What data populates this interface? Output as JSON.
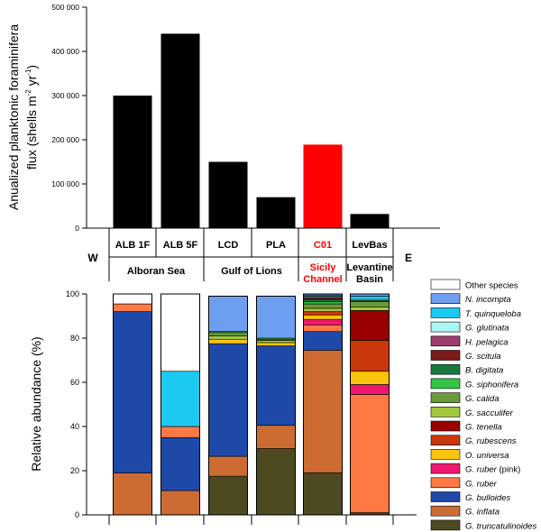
{
  "chart_data": [
    {
      "type": "bar",
      "title": "",
      "ylabel": "Anualized planktonic foraminifera flux (shells m-2 yr-1)",
      "ylabel_line1": "Anualized planktonic foraminifera",
      "ylabel_line2": "flux (shells m",
      "ylabel_sup2": "-2",
      "ylabel_mid": " yr",
      "ylabel_sup1": "-1",
      "ylabel_end": ")",
      "ylim": [
        0,
        500000
      ],
      "yticks": [
        0,
        100000,
        200000,
        300000,
        400000,
        500000
      ],
      "ytick_labels": [
        "0",
        "100 000",
        "200 000",
        "300 000",
        "400 000",
        "500 000"
      ],
      "categories": [
        "ALB 1F",
        "ALB 5F",
        "LCD",
        "PLA",
        "C01",
        "LevBas"
      ],
      "values": [
        300000,
        440000,
        150000,
        70000,
        189000,
        32000
      ],
      "bar_colors": [
        "#000000",
        "#000000",
        "#000000",
        "#000000",
        "#ff0000",
        "#000000"
      ]
    },
    {
      "type": "bar",
      "stacked": true,
      "ylabel": "Relative abundance (%)",
      "ylim": [
        0,
        100
      ],
      "yticks": [
        0,
        20,
        40,
        60,
        80,
        100
      ],
      "ytick_labels": [
        "0",
        "20",
        "40",
        "60",
        "80",
        "100"
      ],
      "categories": [
        "ALB 1F",
        "ALB 5F",
        "LCD",
        "PLA",
        "C01",
        "LevBas"
      ],
      "series": [
        {
          "name": "G. truncatulinoides",
          "color": "#4d4a22",
          "values": [
            0,
            0,
            17.5,
            30,
            19,
            0.5
          ]
        },
        {
          "name": "G. inflata",
          "color": "#cc6c33",
          "values": [
            19,
            11,
            9,
            10.5,
            55.5,
            0.5
          ]
        },
        {
          "name": "G. bulloides",
          "color": "#1f49a8",
          "values": [
            73,
            24,
            51,
            36,
            8.5,
            0
          ]
        },
        {
          "name": "G. ruber",
          "color": "#ff7944",
          "values": [
            3.5,
            5,
            0,
            0,
            3,
            53.5
          ]
        },
        {
          "name": "G. ruber (pink)",
          "color": "#f0176e",
          "values": [
            0,
            0,
            0,
            0,
            2.5,
            4.5
          ]
        },
        {
          "name": "O. universa",
          "color": "#fdc40f",
          "values": [
            0,
            0,
            2,
            1.5,
            2,
            6
          ]
        },
        {
          "name": "G. rubescens",
          "color": "#c9380b",
          "values": [
            0,
            0,
            0,
            0,
            1.5,
            14
          ]
        },
        {
          "name": "G. tenella",
          "color": "#990000",
          "values": [
            0,
            0,
            0,
            0,
            0,
            13.5
          ]
        },
        {
          "name": "G. sacculifer",
          "color": "#a4c83c",
          "values": [
            0,
            0,
            1.5,
            1,
            1.5,
            1.5
          ]
        },
        {
          "name": "G. calida",
          "color": "#6b9a3b",
          "values": [
            0,
            0,
            1.5,
            0.5,
            2,
            2.5
          ]
        },
        {
          "name": "G. siphonifera",
          "color": "#33c544",
          "values": [
            0,
            0,
            0.5,
            0.5,
            1,
            0.5
          ]
        },
        {
          "name": "B. digitata",
          "color": "#1a7a3c",
          "values": [
            0,
            0,
            0,
            0,
            1,
            0
          ]
        },
        {
          "name": "G. scitula",
          "color": "#7d1a1a",
          "values": [
            0,
            0,
            0,
            0,
            0.5,
            0
          ]
        },
        {
          "name": "H. pelagica",
          "color": "#9e3d6e",
          "values": [
            0,
            0,
            0,
            0,
            0.5,
            0
          ]
        },
        {
          "name": "G. glutinata",
          "color": "#aaf5f2",
          "values": [
            0,
            0,
            0,
            0,
            0.5,
            0.5
          ]
        },
        {
          "name": "T. quinqueloba",
          "color": "#1ccaf1",
          "values": [
            0,
            25,
            0,
            0,
            0.5,
            1.5
          ]
        },
        {
          "name": "N. incompta",
          "color": "#6e9ef0",
          "values": [
            0,
            0,
            16,
            19,
            0.5,
            1
          ]
        },
        {
          "name": "Other species",
          "color": "#ffffff",
          "values": [
            4.5,
            35,
            0,
            0,
            0,
            0
          ]
        }
      ],
      "legend_order": [
        "Other species",
        "N. incompta",
        "T. quinqueloba",
        "G. glutinata",
        "H. pelagica",
        "G. scitula",
        "B. digitata",
        "G. siphonifera",
        "G. calida",
        "G. sacculifer",
        "G. tenella",
        "G. rubescens",
        "O. universa",
        "G. ruber (pink)",
        "G. ruber",
        "G. bulloides",
        "G. inflata",
        "G. truncatulinoides"
      ],
      "legend_position": "right"
    }
  ],
  "transect": {
    "west": "W",
    "east": "E",
    "stations": [
      "ALB 1F",
      "ALB 5F",
      "LCD",
      "PLA",
      "C01",
      "LevBas"
    ],
    "station_colors": [
      "#000000",
      "#000000",
      "#000000",
      "#000000",
      "#ff0000",
      "#000000"
    ],
    "regions": [
      {
        "line1": "Alboran Sea",
        "line2": "",
        "color": "#000000"
      },
      {
        "line1": "Gulf of Lions",
        "line2": "",
        "color": "#000000"
      },
      {
        "line1": "Sicily",
        "line2": "Channel",
        "color": "#ff0000"
      },
      {
        "line1": "Levantine",
        "line2": "Basin",
        "color": "#000000"
      }
    ]
  }
}
